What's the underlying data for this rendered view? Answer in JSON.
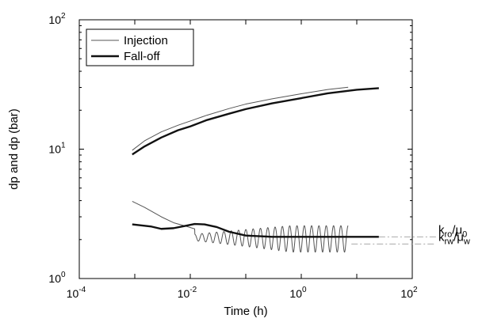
{
  "chart_data": {
    "type": "line",
    "title": "",
    "xlabel": "Time (h)",
    "ylabel": "dp and dp (bar)",
    "xscale": "log",
    "yscale": "log",
    "xlim": [
      0.0001,
      100
    ],
    "ylim": [
      1,
      100
    ],
    "x_tick_labels": [
      {
        "base": "10",
        "exp": "-4"
      },
      {
        "base": "10",
        "exp": "-2"
      },
      {
        "base": "10",
        "exp": "0"
      },
      {
        "base": "10",
        "exp": "2"
      }
    ],
    "y_tick_labels": [
      {
        "base": "10",
        "exp": "0"
      },
      {
        "base": "10",
        "exp": "1"
      },
      {
        "base": "10",
        "exp": "2"
      }
    ],
    "grid": false,
    "legend_position": "top-left",
    "legend_items": [
      "Injection",
      "Fall-off"
    ],
    "series": [
      {
        "name": "Injection",
        "role": "pressure",
        "style": "thin",
        "x": [
          0.0009,
          0.0015,
          0.003,
          0.006,
          0.01,
          0.02,
          0.05,
          0.1,
          0.3,
          1,
          3,
          7
        ],
        "y": [
          9.8,
          11.6,
          13.6,
          15.3,
          16.5,
          18.3,
          20.6,
          22.3,
          24.5,
          26.8,
          28.9,
          30.1
        ]
      },
      {
        "name": "Fall-off",
        "role": "pressure",
        "style": "thick",
        "x": [
          0.0009,
          0.0015,
          0.003,
          0.006,
          0.01,
          0.02,
          0.05,
          0.1,
          0.3,
          1,
          3,
          10,
          25
        ],
        "y": [
          9.1,
          10.5,
          12.3,
          14.0,
          15.0,
          16.8,
          18.8,
          20.4,
          22.6,
          24.8,
          27.0,
          28.8,
          29.6
        ]
      },
      {
        "name": "Injection",
        "role": "derivative",
        "style": "thin",
        "x": [
          0.0009,
          0.0015,
          0.003,
          0.005,
          0.008,
          0.012
        ],
        "y": [
          3.95,
          3.55,
          3.0,
          2.7,
          2.55,
          2.42
        ],
        "osc_x_start": 0.012,
        "osc_x_end": 7,
        "osc_center": 2.08,
        "osc_amp_start": 0.12,
        "osc_amp_end": 0.48,
        "osc_count": 21
      },
      {
        "name": "Fall-off",
        "role": "derivative",
        "style": "thick",
        "x": [
          0.0009,
          0.002,
          0.003,
          0.005,
          0.008,
          0.012,
          0.018,
          0.03,
          0.05,
          0.1,
          0.3,
          1,
          3,
          10,
          25
        ],
        "y": [
          2.62,
          2.52,
          2.42,
          2.45,
          2.55,
          2.64,
          2.62,
          2.5,
          2.3,
          2.15,
          2.1,
          2.1,
          2.1,
          2.1,
          2.1
        ]
      }
    ],
    "annotations": [
      {
        "label_main": "k",
        "sub1": "ro",
        "mid": "/μ",
        "sub2": "0",
        "y": 2.1,
        "x_from": 25
      },
      {
        "label_main": "k",
        "sub1": "rw",
        "mid": "/μ",
        "sub2": "w",
        "y": 1.85,
        "x_from": 8
      }
    ],
    "colors": {
      "injection": "#555555",
      "falloff": "#111111",
      "annot_line": "#aaaaaa",
      "axis": "#000000"
    }
  }
}
